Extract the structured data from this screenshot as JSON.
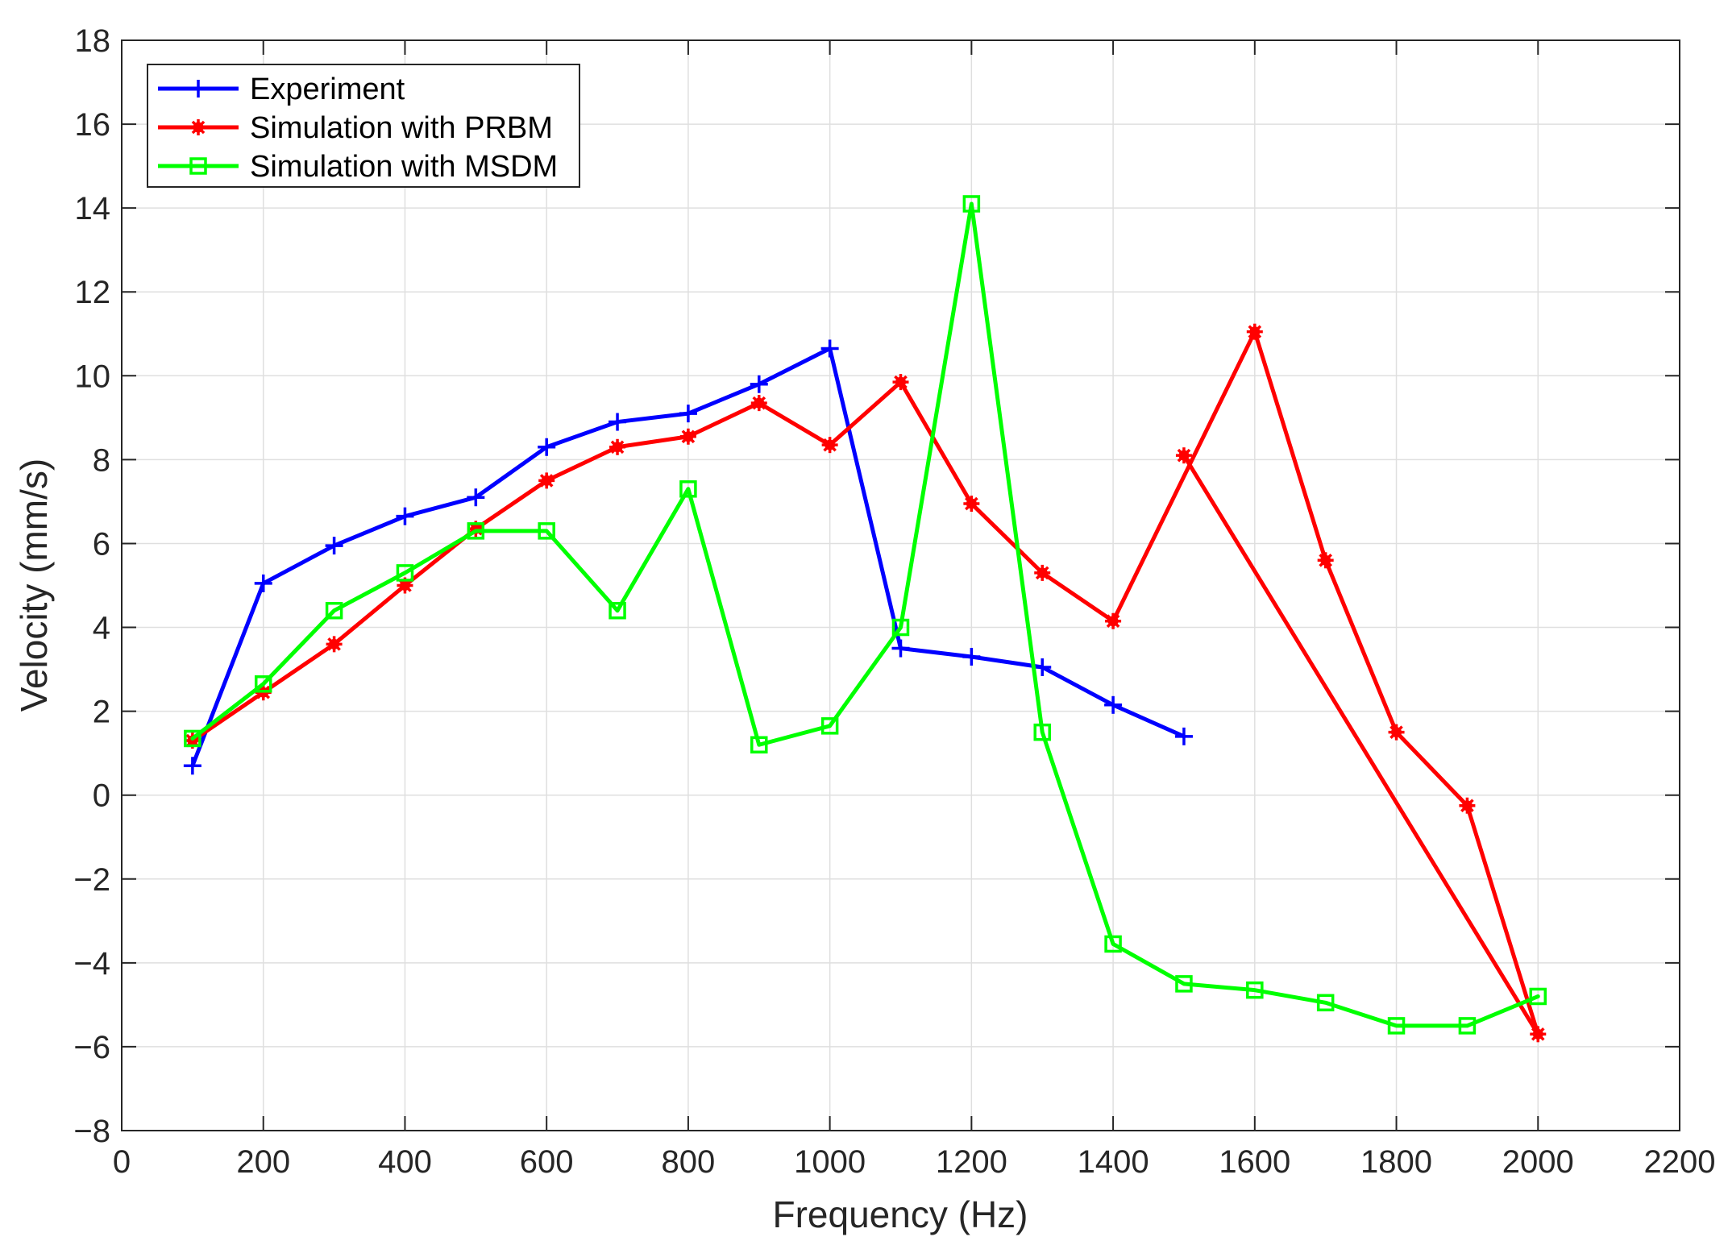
{
  "chart_data": {
    "type": "line",
    "title": "",
    "xlabel": "Frequency (Hz)",
    "ylabel": "Velocity (mm/s)",
    "xlim": [
      0,
      2200
    ],
    "ylim": [
      -8,
      18
    ],
    "xticks": [
      0,
      200,
      400,
      600,
      800,
      1000,
      1200,
      1400,
      1600,
      1800,
      2000,
      2200
    ],
    "yticks": [
      -8,
      -6,
      -4,
      -2,
      0,
      2,
      4,
      6,
      8,
      10,
      12,
      14,
      16,
      18
    ],
    "xtick_labels": [
      "0",
      "200",
      "400",
      "600",
      "800",
      "1000",
      "1200",
      "1400",
      "1600",
      "1800",
      "2000",
      "2200"
    ],
    "ytick_labels": [
      "−8",
      "−6",
      "−4",
      "−2",
      "0",
      "2",
      "4",
      "6",
      "8",
      "10",
      "12",
      "14",
      "16",
      "18"
    ],
    "grid": true,
    "legend_position": "top-left",
    "series": [
      {
        "name": "Experiment",
        "color": "#0000ff",
        "marker": "plus",
        "x": [
          100,
          200,
          300,
          400,
          500,
          600,
          700,
          800,
          900,
          1000,
          1100,
          1200,
          1300,
          1400,
          1500
        ],
        "y": [
          0.7,
          5.05,
          5.95,
          6.65,
          7.1,
          8.3,
          8.9,
          9.1,
          9.8,
          10.65,
          3.5,
          3.3,
          3.05,
          2.15,
          1.4
        ]
      },
      {
        "name": "Simulation with PRBM",
        "color": "#ff0000",
        "marker": "asterisk",
        "x": [
          100,
          200,
          300,
          400,
          500,
          600,
          700,
          800,
          900,
          1000,
          1100,
          1200,
          1300,
          1400,
          1600,
          1700,
          1800,
          1900,
          2000,
          1500
        ],
        "y": [
          1.3,
          2.45,
          3.6,
          5.0,
          6.35,
          7.5,
          8.3,
          8.55,
          9.35,
          8.35,
          9.85,
          6.95,
          5.3,
          4.15,
          11.05,
          5.6,
          1.5,
          -0.25,
          -5.7,
          8.1
        ]
      },
      {
        "name": "Simulation with MSDM",
        "color": "#00ff00",
        "marker": "square",
        "x": [
          100,
          200,
          300,
          400,
          500,
          600,
          700,
          800,
          900,
          1000,
          1100,
          1200,
          1300,
          1400,
          1500,
          1600,
          1700,
          1800,
          1900,
          2000
        ],
        "y": [
          1.35,
          2.65,
          4.4,
          5.3,
          6.3,
          6.3,
          4.4,
          7.3,
          1.2,
          1.65,
          4.0,
          14.1,
          1.5,
          -3.55,
          -4.5,
          -4.65,
          -4.95,
          -5.5,
          -5.5,
          -4.8
        ]
      }
    ]
  }
}
